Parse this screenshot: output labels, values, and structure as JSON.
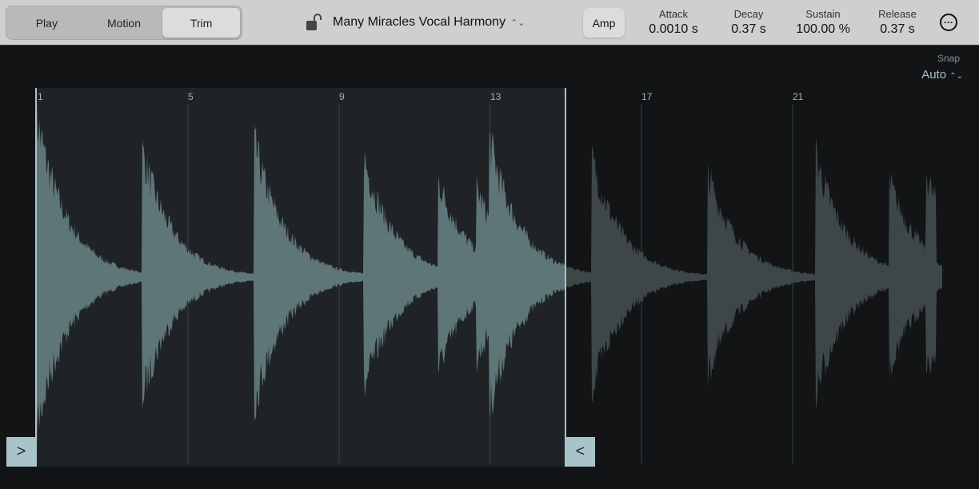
{
  "toolbar": {
    "modes": [
      {
        "label": "Play",
        "selected": false
      },
      {
        "label": "Motion",
        "selected": false
      },
      {
        "label": "Trim",
        "selected": true
      }
    ],
    "lock_icon": "lock-open-icon",
    "sample_title": "Many Miracles Vocal Harmony",
    "amp_label": "Amp",
    "envelope": [
      {
        "label": "Attack",
        "value": "0.0010 s"
      },
      {
        "label": "Decay",
        "value": "0.37 s"
      },
      {
        "label": "Sustain",
        "value": "100.00 %"
      },
      {
        "label": "Release",
        "value": "0.37 s"
      }
    ],
    "more_icon": "ellipsis-circle-icon"
  },
  "snap": {
    "label": "Snap",
    "value": "Auto"
  },
  "ruler": {
    "bars": [
      "1",
      "5",
      "9",
      "13",
      "17",
      "21"
    ]
  },
  "colors": {
    "selected_wave": "#5f7679",
    "unselected_wave": "#3d4748",
    "handle": "#a9c4c8",
    "selection_bg": "#1f2326"
  }
}
